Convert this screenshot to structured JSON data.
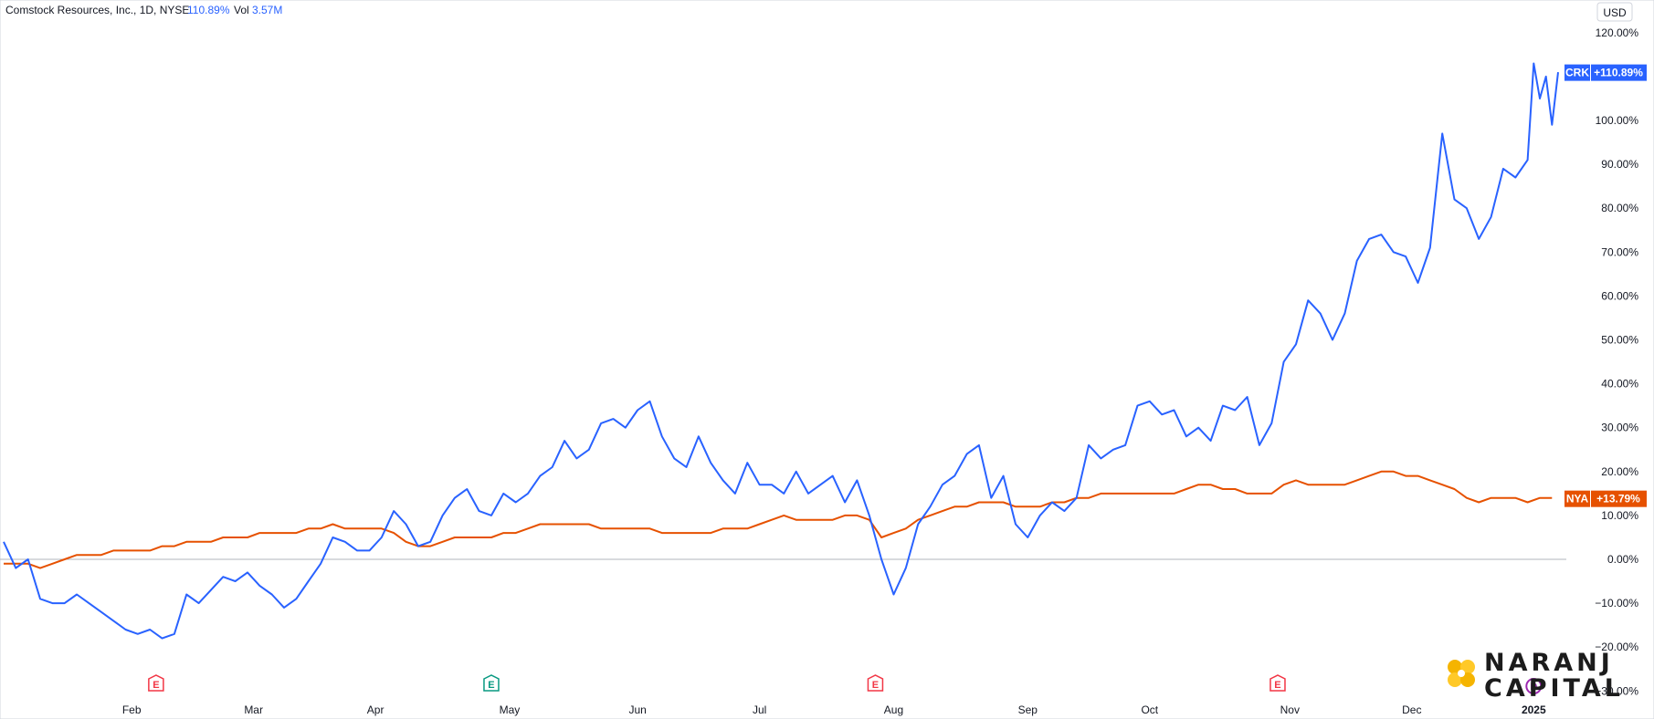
{
  "header": {
    "symbol_desc": "Comstock Resources, Inc., 1D, NYSE",
    "change": "110.89%",
    "vol_label": "Vol",
    "vol_value": "3.57M"
  },
  "currency": "USD",
  "logo": {
    "line1": "NARANJ",
    "line2": "CAPITAL"
  },
  "colors": {
    "crk": "#2962ff",
    "nya": "#e65100",
    "grid": "#e0e3eb",
    "zero": "#b2b5be",
    "earn_red": "#f23645",
    "earn_green": "#089981",
    "purple": "#9c27b0"
  },
  "chart_data": {
    "type": "line",
    "ylim": [
      -30,
      120
    ],
    "y_ticks": [
      120,
      110,
      100,
      90,
      80,
      70,
      60,
      50,
      40,
      30,
      20,
      10,
      0,
      -10,
      -20,
      -30
    ],
    "y_tick_labels": [
      "120.00%",
      "110.00%",
      "100.00%",
      "90.00%",
      "80.00%",
      "70.00%",
      "60.00%",
      "50.00%",
      "40.00%",
      "30.00%",
      "20.00%",
      "10.00%",
      "0.00%",
      "−10.00%",
      "−20.00%",
      "−30.00%"
    ],
    "x_month_labels": [
      {
        "label": "Feb",
        "t": 21
      },
      {
        "label": "Mar",
        "t": 41
      },
      {
        "label": "Apr",
        "t": 61
      },
      {
        "label": "May",
        "t": 83
      },
      {
        "label": "Jun",
        "t": 104
      },
      {
        "label": "Jul",
        "t": 124
      },
      {
        "label": "Aug",
        "t": 146
      },
      {
        "label": "Sep",
        "t": 168
      },
      {
        "label": "Oct",
        "t": 188
      },
      {
        "label": "Nov",
        "t": 211
      },
      {
        "label": "Dec",
        "t": 231
      },
      {
        "label": "2025",
        "t": 251
      }
    ],
    "t_range": [
      0,
      255
    ],
    "events": [
      {
        "type": "E",
        "t": 25,
        "color": "red"
      },
      {
        "type": "E",
        "t": 80,
        "color": "green"
      },
      {
        "type": "E",
        "t": 143,
        "color": "red"
      },
      {
        "type": "E",
        "t": 209,
        "color": "red"
      },
      {
        "type": "D",
        "t": 251,
        "color": "purple"
      }
    ],
    "series": [
      {
        "name": "CRK",
        "badge": "+110.89%",
        "last_value": 110.89,
        "color": "#2962ff",
        "points": [
          [
            0,
            4
          ],
          [
            2,
            -2
          ],
          [
            4,
            0
          ],
          [
            6,
            -9
          ],
          [
            8,
            -10
          ],
          [
            10,
            -10
          ],
          [
            12,
            -8
          ],
          [
            14,
            -10
          ],
          [
            16,
            -12
          ],
          [
            18,
            -14
          ],
          [
            20,
            -16
          ],
          [
            22,
            -17
          ],
          [
            24,
            -16
          ],
          [
            26,
            -18
          ],
          [
            28,
            -17
          ],
          [
            30,
            -8
          ],
          [
            32,
            -10
          ],
          [
            34,
            -7
          ],
          [
            36,
            -4
          ],
          [
            38,
            -5
          ],
          [
            40,
            -3
          ],
          [
            42,
            -6
          ],
          [
            44,
            -8
          ],
          [
            46,
            -11
          ],
          [
            48,
            -9
          ],
          [
            50,
            -5
          ],
          [
            52,
            -1
          ],
          [
            54,
            5
          ],
          [
            56,
            4
          ],
          [
            58,
            2
          ],
          [
            60,
            2
          ],
          [
            62,
            5
          ],
          [
            64,
            11
          ],
          [
            66,
            8
          ],
          [
            68,
            3
          ],
          [
            70,
            4
          ],
          [
            72,
            10
          ],
          [
            74,
            14
          ],
          [
            76,
            16
          ],
          [
            78,
            11
          ],
          [
            80,
            10
          ],
          [
            82,
            15
          ],
          [
            84,
            13
          ],
          [
            86,
            15
          ],
          [
            88,
            19
          ],
          [
            90,
            21
          ],
          [
            92,
            27
          ],
          [
            94,
            23
          ],
          [
            96,
            25
          ],
          [
            98,
            31
          ],
          [
            100,
            32
          ],
          [
            102,
            30
          ],
          [
            104,
            34
          ],
          [
            106,
            36
          ],
          [
            108,
            28
          ],
          [
            110,
            23
          ],
          [
            112,
            21
          ],
          [
            114,
            28
          ],
          [
            116,
            22
          ],
          [
            118,
            18
          ],
          [
            120,
            15
          ],
          [
            122,
            22
          ],
          [
            124,
            17
          ],
          [
            126,
            17
          ],
          [
            128,
            15
          ],
          [
            130,
            20
          ],
          [
            132,
            15
          ],
          [
            134,
            17
          ],
          [
            136,
            19
          ],
          [
            138,
            13
          ],
          [
            140,
            18
          ],
          [
            142,
            10
          ],
          [
            144,
            0
          ],
          [
            146,
            -8
          ],
          [
            148,
            -2
          ],
          [
            150,
            8
          ],
          [
            152,
            12
          ],
          [
            154,
            17
          ],
          [
            156,
            19
          ],
          [
            158,
            24
          ],
          [
            160,
            26
          ],
          [
            162,
            14
          ],
          [
            164,
            19
          ],
          [
            166,
            8
          ],
          [
            168,
            5
          ],
          [
            170,
            10
          ],
          [
            172,
            13
          ],
          [
            174,
            11
          ],
          [
            176,
            14
          ],
          [
            178,
            26
          ],
          [
            180,
            23
          ],
          [
            182,
            25
          ],
          [
            184,
            26
          ],
          [
            186,
            35
          ],
          [
            188,
            36
          ],
          [
            190,
            33
          ],
          [
            192,
            34
          ],
          [
            194,
            28
          ],
          [
            196,
            30
          ],
          [
            198,
            27
          ],
          [
            200,
            35
          ],
          [
            202,
            34
          ],
          [
            204,
            37
          ],
          [
            206,
            26
          ],
          [
            208,
            31
          ],
          [
            210,
            45
          ],
          [
            212,
            49
          ],
          [
            214,
            59
          ],
          [
            216,
            56
          ],
          [
            218,
            50
          ],
          [
            220,
            56
          ],
          [
            222,
            68
          ],
          [
            224,
            73
          ],
          [
            226,
            74
          ],
          [
            228,
            70
          ],
          [
            230,
            69
          ],
          [
            232,
            63
          ],
          [
            234,
            71
          ],
          [
            236,
            97
          ],
          [
            238,
            82
          ],
          [
            240,
            80
          ],
          [
            242,
            73
          ],
          [
            244,
            78
          ],
          [
            246,
            89
          ],
          [
            248,
            87
          ],
          [
            250,
            91
          ],
          [
            251,
            113
          ],
          [
            252,
            105
          ],
          [
            253,
            110
          ],
          [
            254,
            99
          ],
          [
            255,
            111
          ]
        ]
      },
      {
        "name": "NYA",
        "badge": "+13.79%",
        "last_value": 13.79,
        "color": "#e65100",
        "points": [
          [
            0,
            -1
          ],
          [
            4,
            -1
          ],
          [
            6,
            -2
          ],
          [
            8,
            -1
          ],
          [
            10,
            0
          ],
          [
            12,
            1
          ],
          [
            14,
            1
          ],
          [
            16,
            1
          ],
          [
            18,
            2
          ],
          [
            20,
            2
          ],
          [
            22,
            2
          ],
          [
            24,
            2
          ],
          [
            26,
            3
          ],
          [
            28,
            3
          ],
          [
            30,
            4
          ],
          [
            32,
            4
          ],
          [
            34,
            4
          ],
          [
            36,
            5
          ],
          [
            38,
            5
          ],
          [
            40,
            5
          ],
          [
            42,
            6
          ],
          [
            44,
            6
          ],
          [
            46,
            6
          ],
          [
            48,
            6
          ],
          [
            50,
            7
          ],
          [
            52,
            7
          ],
          [
            54,
            8
          ],
          [
            56,
            7
          ],
          [
            58,
            7
          ],
          [
            60,
            7
          ],
          [
            62,
            7
          ],
          [
            64,
            6
          ],
          [
            66,
            4
          ],
          [
            68,
            3
          ],
          [
            70,
            3
          ],
          [
            72,
            4
          ],
          [
            74,
            5
          ],
          [
            76,
            5
          ],
          [
            78,
            5
          ],
          [
            80,
            5
          ],
          [
            82,
            6
          ],
          [
            84,
            6
          ],
          [
            86,
            7
          ],
          [
            88,
            8
          ],
          [
            90,
            8
          ],
          [
            92,
            8
          ],
          [
            94,
            8
          ],
          [
            96,
            8
          ],
          [
            98,
            7
          ],
          [
            100,
            7
          ],
          [
            102,
            7
          ],
          [
            104,
            7
          ],
          [
            106,
            7
          ],
          [
            108,
            6
          ],
          [
            110,
            6
          ],
          [
            112,
            6
          ],
          [
            114,
            6
          ],
          [
            116,
            6
          ],
          [
            118,
            7
          ],
          [
            120,
            7
          ],
          [
            122,
            7
          ],
          [
            124,
            8
          ],
          [
            126,
            9
          ],
          [
            128,
            10
          ],
          [
            130,
            9
          ],
          [
            132,
            9
          ],
          [
            134,
            9
          ],
          [
            136,
            9
          ],
          [
            138,
            10
          ],
          [
            140,
            10
          ],
          [
            142,
            9
          ],
          [
            144,
            5
          ],
          [
            146,
            6
          ],
          [
            148,
            7
          ],
          [
            150,
            9
          ],
          [
            152,
            10
          ],
          [
            154,
            11
          ],
          [
            156,
            12
          ],
          [
            158,
            12
          ],
          [
            160,
            13
          ],
          [
            162,
            13
          ],
          [
            164,
            13
          ],
          [
            166,
            12
          ],
          [
            168,
            12
          ],
          [
            170,
            12
          ],
          [
            172,
            13
          ],
          [
            174,
            13
          ],
          [
            176,
            14
          ],
          [
            178,
            14
          ],
          [
            180,
            15
          ],
          [
            182,
            15
          ],
          [
            184,
            15
          ],
          [
            186,
            15
          ],
          [
            188,
            15
          ],
          [
            190,
            15
          ],
          [
            192,
            15
          ],
          [
            194,
            16
          ],
          [
            196,
            17
          ],
          [
            198,
            17
          ],
          [
            200,
            16
          ],
          [
            202,
            16
          ],
          [
            204,
            15
          ],
          [
            206,
            15
          ],
          [
            208,
            15
          ],
          [
            210,
            17
          ],
          [
            212,
            18
          ],
          [
            214,
            17
          ],
          [
            216,
            17
          ],
          [
            218,
            17
          ],
          [
            220,
            17
          ],
          [
            222,
            18
          ],
          [
            224,
            19
          ],
          [
            226,
            20
          ],
          [
            228,
            20
          ],
          [
            230,
            19
          ],
          [
            232,
            19
          ],
          [
            234,
            18
          ],
          [
            236,
            17
          ],
          [
            238,
            16
          ],
          [
            240,
            14
          ],
          [
            242,
            13
          ],
          [
            244,
            14
          ],
          [
            246,
            14
          ],
          [
            248,
            14
          ],
          [
            250,
            13
          ],
          [
            252,
            14
          ],
          [
            254,
            14
          ]
        ]
      }
    ]
  }
}
